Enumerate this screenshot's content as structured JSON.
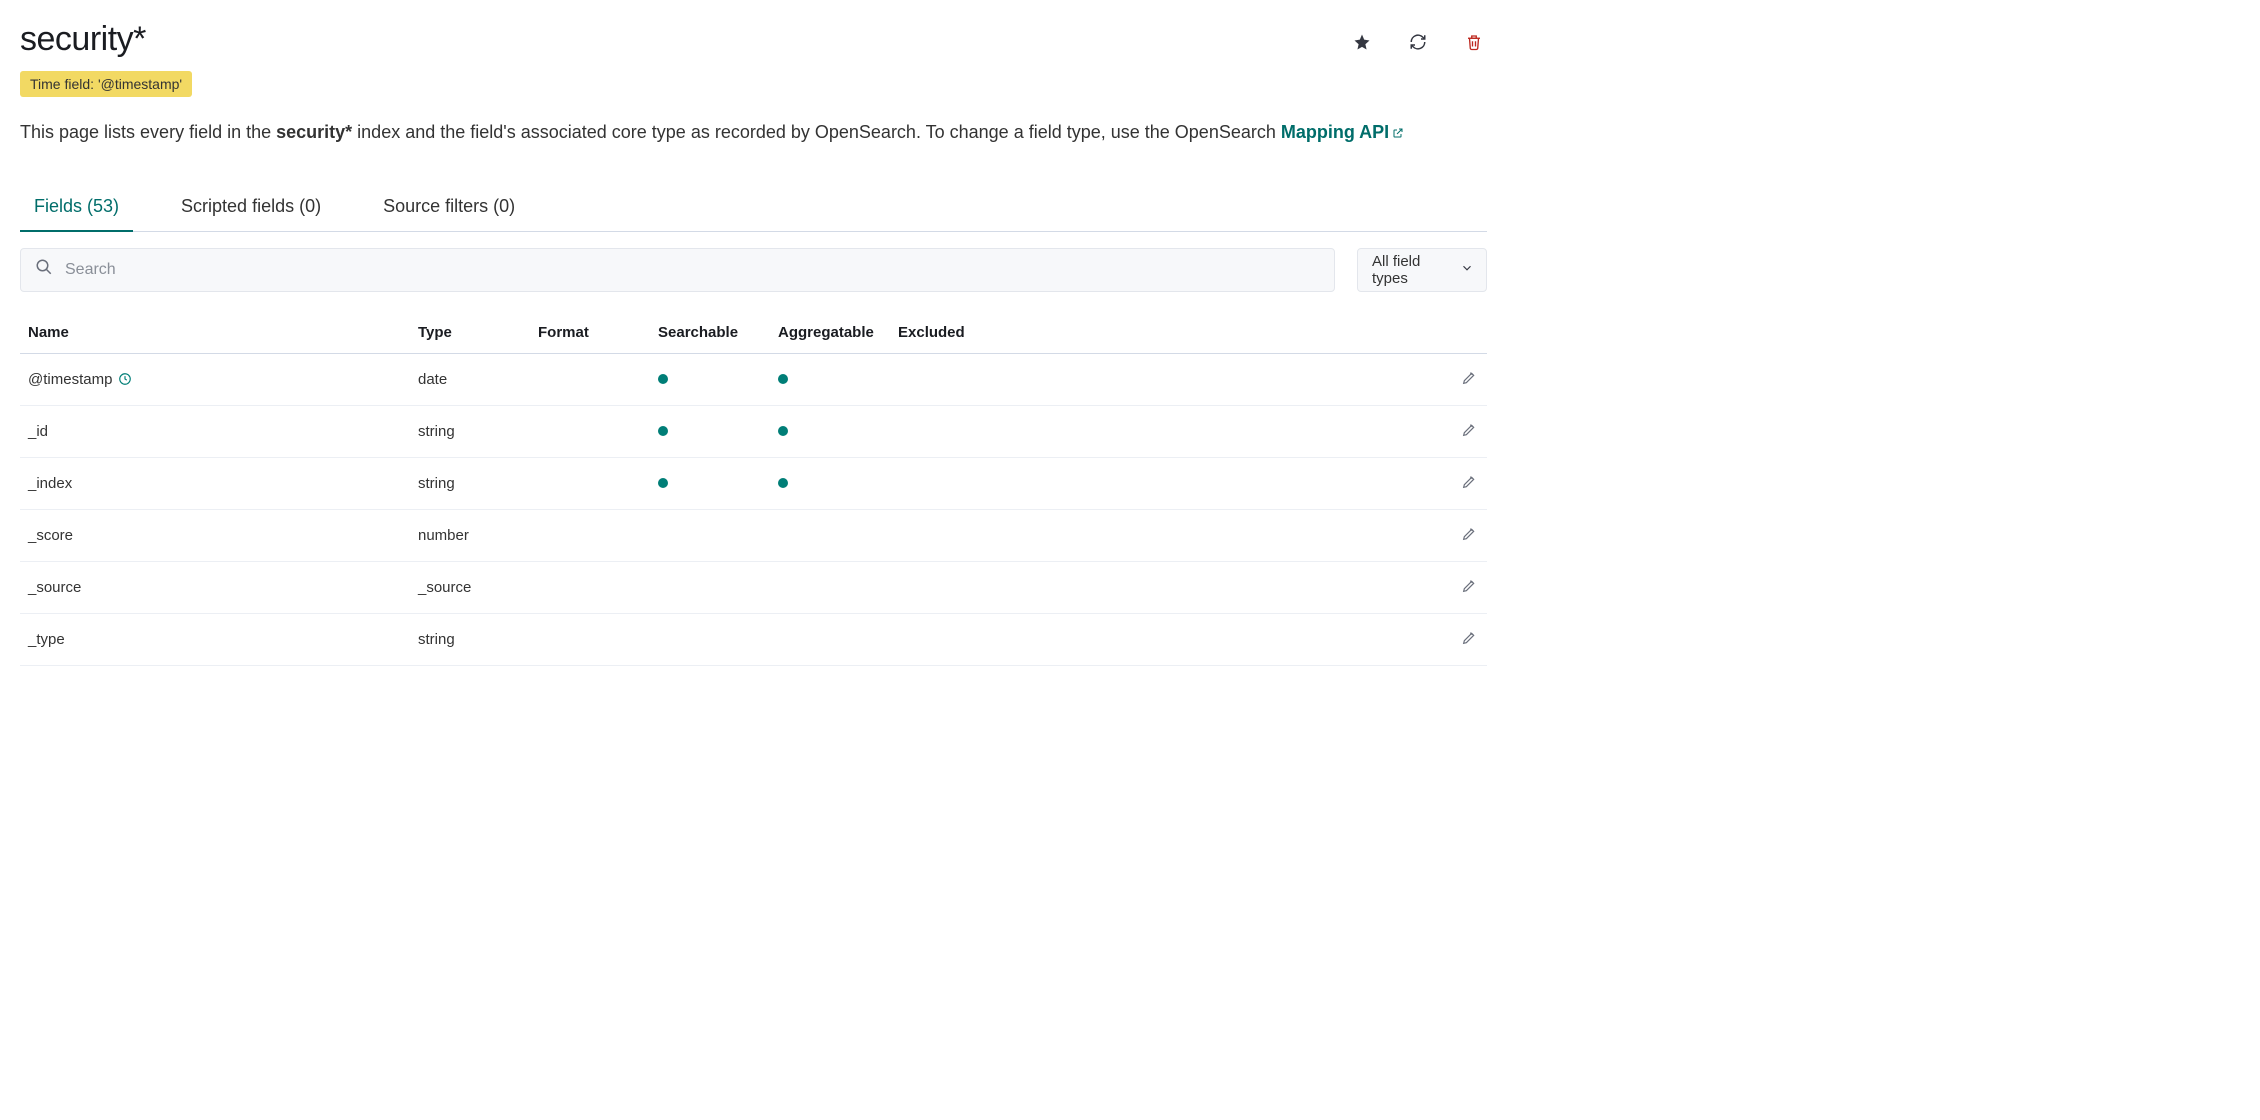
{
  "colors": {
    "accent": "#006d6a",
    "dot": "#007e77",
    "badge_bg": "#f2d963",
    "border": "#d3dae6",
    "row_border": "#eceff4",
    "panel_bg": "#f7f8fa",
    "panel_border": "#e3e6ec",
    "delete_icon": "#bd271e",
    "icon_dark": "#343741",
    "icon_muted": "#6a6f7b",
    "text": "#333333"
  },
  "header": {
    "title": "security*",
    "time_field_badge": "Time field: '@timestamp'"
  },
  "description": {
    "pre": "This page lists every field in the ",
    "index_name": "security*",
    "mid": " index and the field's associated core type as recorded by OpenSearch. To change a field type, use the OpenSearch ",
    "link_text": "Mapping API"
  },
  "tabs": [
    {
      "id": "fields",
      "label": "Fields (53)",
      "active": true
    },
    {
      "id": "scripted",
      "label": "Scripted fields (0)",
      "active": false
    },
    {
      "id": "source",
      "label": "Source filters (0)",
      "active": false
    }
  ],
  "toolbar": {
    "search_placeholder": "Search",
    "filter_label": "All field types"
  },
  "table": {
    "columns": {
      "name": "Name",
      "type": "Type",
      "format": "Format",
      "searchable": "Searchable",
      "aggregatable": "Aggregatable",
      "excluded": "Excluded"
    },
    "rows": [
      {
        "name": "@timestamp",
        "type": "date",
        "format": "",
        "searchable": true,
        "aggregatable": true,
        "is_time_field": true
      },
      {
        "name": "_id",
        "type": "string",
        "format": "",
        "searchable": true,
        "aggregatable": true,
        "is_time_field": false
      },
      {
        "name": "_index",
        "type": "string",
        "format": "",
        "searchable": true,
        "aggregatable": true,
        "is_time_field": false
      },
      {
        "name": "_score",
        "type": "number",
        "format": "",
        "searchable": false,
        "aggregatable": false,
        "is_time_field": false
      },
      {
        "name": "_source",
        "type": "_source",
        "format": "",
        "searchable": false,
        "aggregatable": false,
        "is_time_field": false
      },
      {
        "name": "_type",
        "type": "string",
        "format": "",
        "searchable": false,
        "aggregatable": false,
        "is_time_field": false
      }
    ]
  }
}
